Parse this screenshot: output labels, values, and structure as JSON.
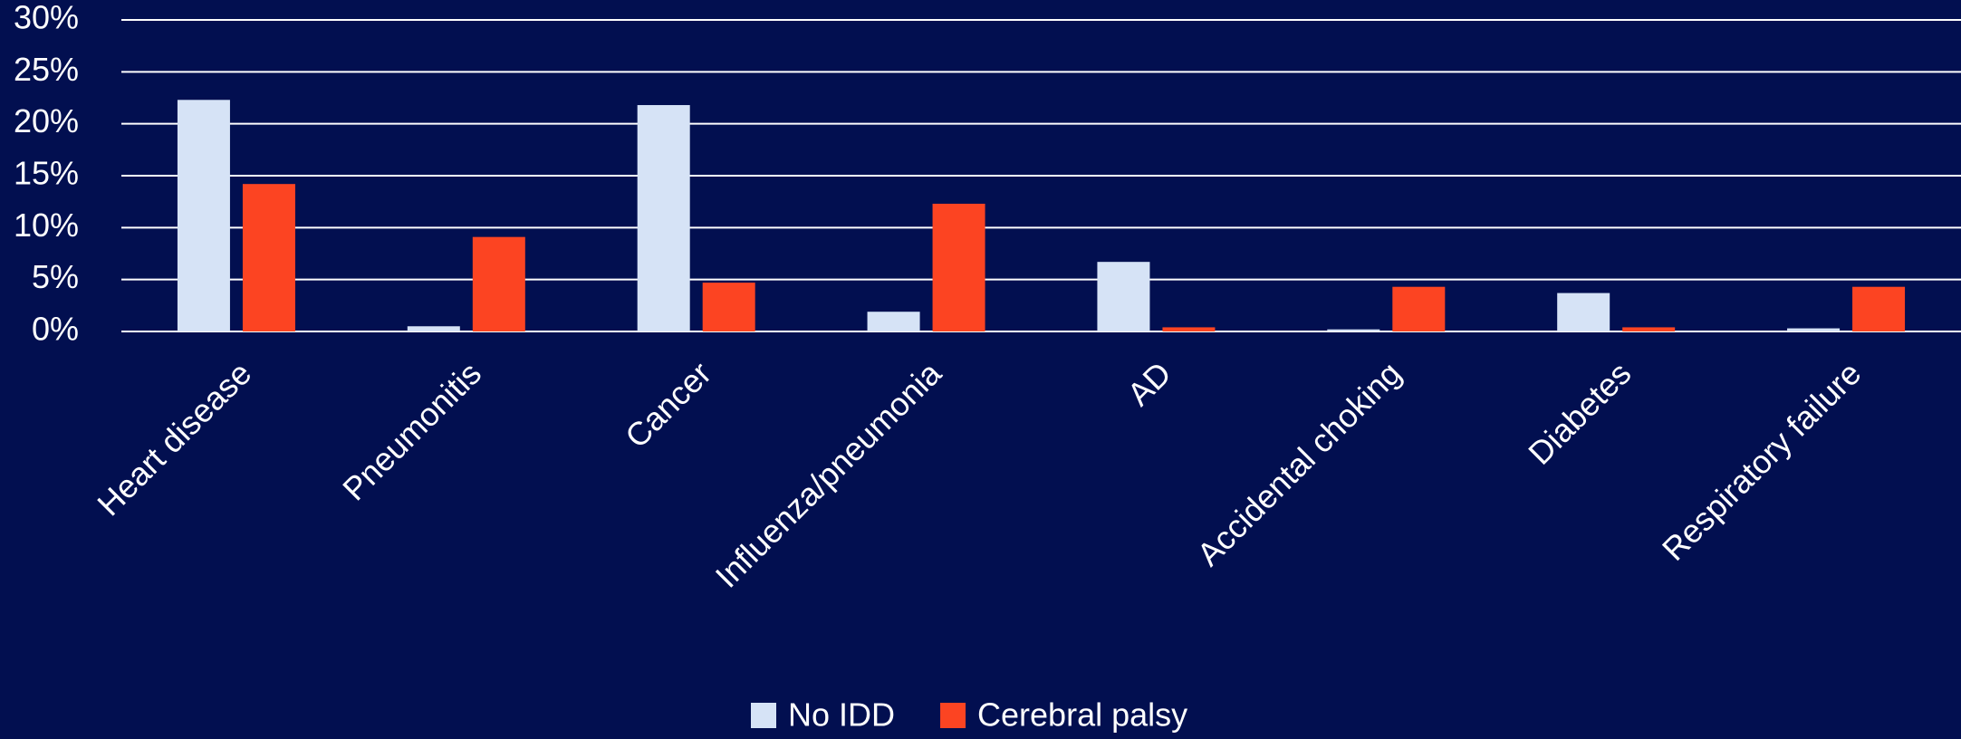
{
  "chart_data": {
    "type": "bar",
    "categories": [
      "Heart disease",
      "Pneumonitis",
      "Cancer",
      "Influenza/pneumonia",
      "AD",
      "Accidental choking",
      "Diabetes",
      "Respiratory failure"
    ],
    "series": [
      {
        "name": "No IDD",
        "color": "#d6e3f6",
        "values": [
          22.3,
          0.5,
          21.8,
          1.9,
          6.7,
          0.2,
          3.7,
          0.3
        ]
      },
      {
        "name": "Cerebral palsy",
        "color": "#fc4422",
        "values": [
          14.2,
          9.1,
          4.7,
          12.3,
          0.4,
          4.3,
          0.4,
          4.3
        ]
      }
    ],
    "ylim": [
      0,
      30
    ],
    "yticks": [
      {
        "value": 0,
        "label": "0%"
      },
      {
        "value": 5,
        "label": "5%"
      },
      {
        "value": 10,
        "label": "10%"
      },
      {
        "value": 15,
        "label": "15%"
      },
      {
        "value": 20,
        "label": "20%"
      },
      {
        "value": 25,
        "label": "25%"
      },
      {
        "value": 30,
        "label": "30%"
      }
    ],
    "grid": true,
    "legend": "bottom"
  }
}
